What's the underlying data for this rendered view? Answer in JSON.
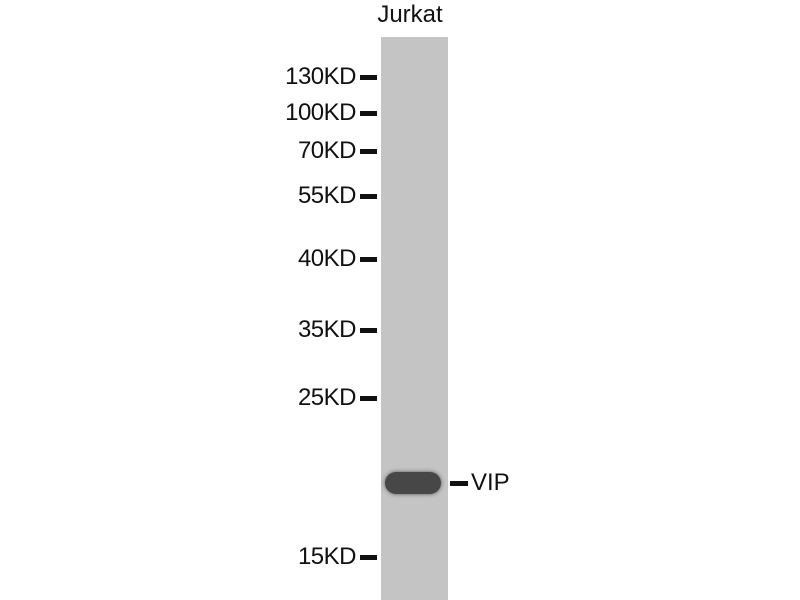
{
  "lane_label": "Jurkat",
  "markers": [
    "130KD",
    "100KD",
    "70KD",
    "55KD",
    "40KD",
    "35KD",
    "25KD",
    "15KD"
  ],
  "target_label": "VIP",
  "colors": {
    "membrane": "#c4c4c4",
    "band": "#474747"
  }
}
